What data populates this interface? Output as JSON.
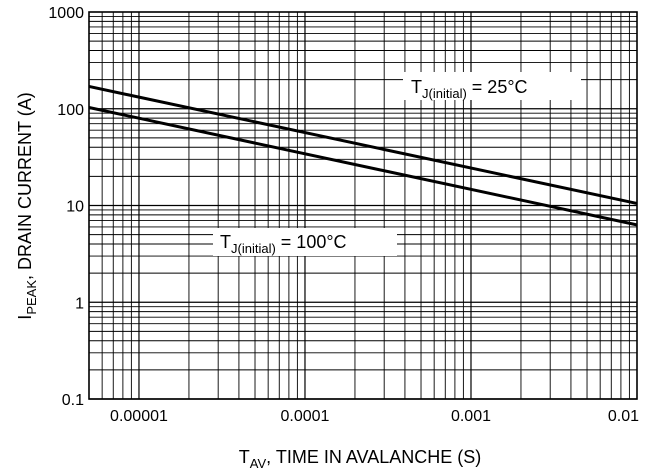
{
  "chart_data": {
    "type": "line",
    "x_scale": "log",
    "y_scale": "log",
    "xlim": [
      5e-06,
      0.01
    ],
    "ylim": [
      0.1,
      1000
    ],
    "grid": true,
    "x_ticks": [
      "0.00001",
      "0.0001",
      "0.001",
      "0.01"
    ],
    "y_ticks": [
      "0.1",
      "1",
      "10",
      "100",
      "1000"
    ],
    "xlabel": {
      "main": "T",
      "sub": "AV",
      "rest": ", TIME IN AVALANCHE (S)"
    },
    "ylabel": {
      "main": "I",
      "sub": "PEAK",
      "rest": ", DRAIN CURRENT (A)"
    },
    "series": [
      {
        "name": "T_J(initial) = 25°C",
        "x": [
          5e-06,
          0.01
        ],
        "y": [
          170,
          10.5
        ]
      },
      {
        "name": "T_J(initial) = 100°C",
        "x": [
          5e-06,
          0.01
        ],
        "y": [
          103,
          6.3
        ]
      }
    ],
    "annotations": [
      {
        "main": "T",
        "sub": "J(initial)",
        "rest": " = 25°C"
      },
      {
        "main": "T",
        "sub": "J(initial)",
        "rest": " = 100°C"
      }
    ]
  }
}
